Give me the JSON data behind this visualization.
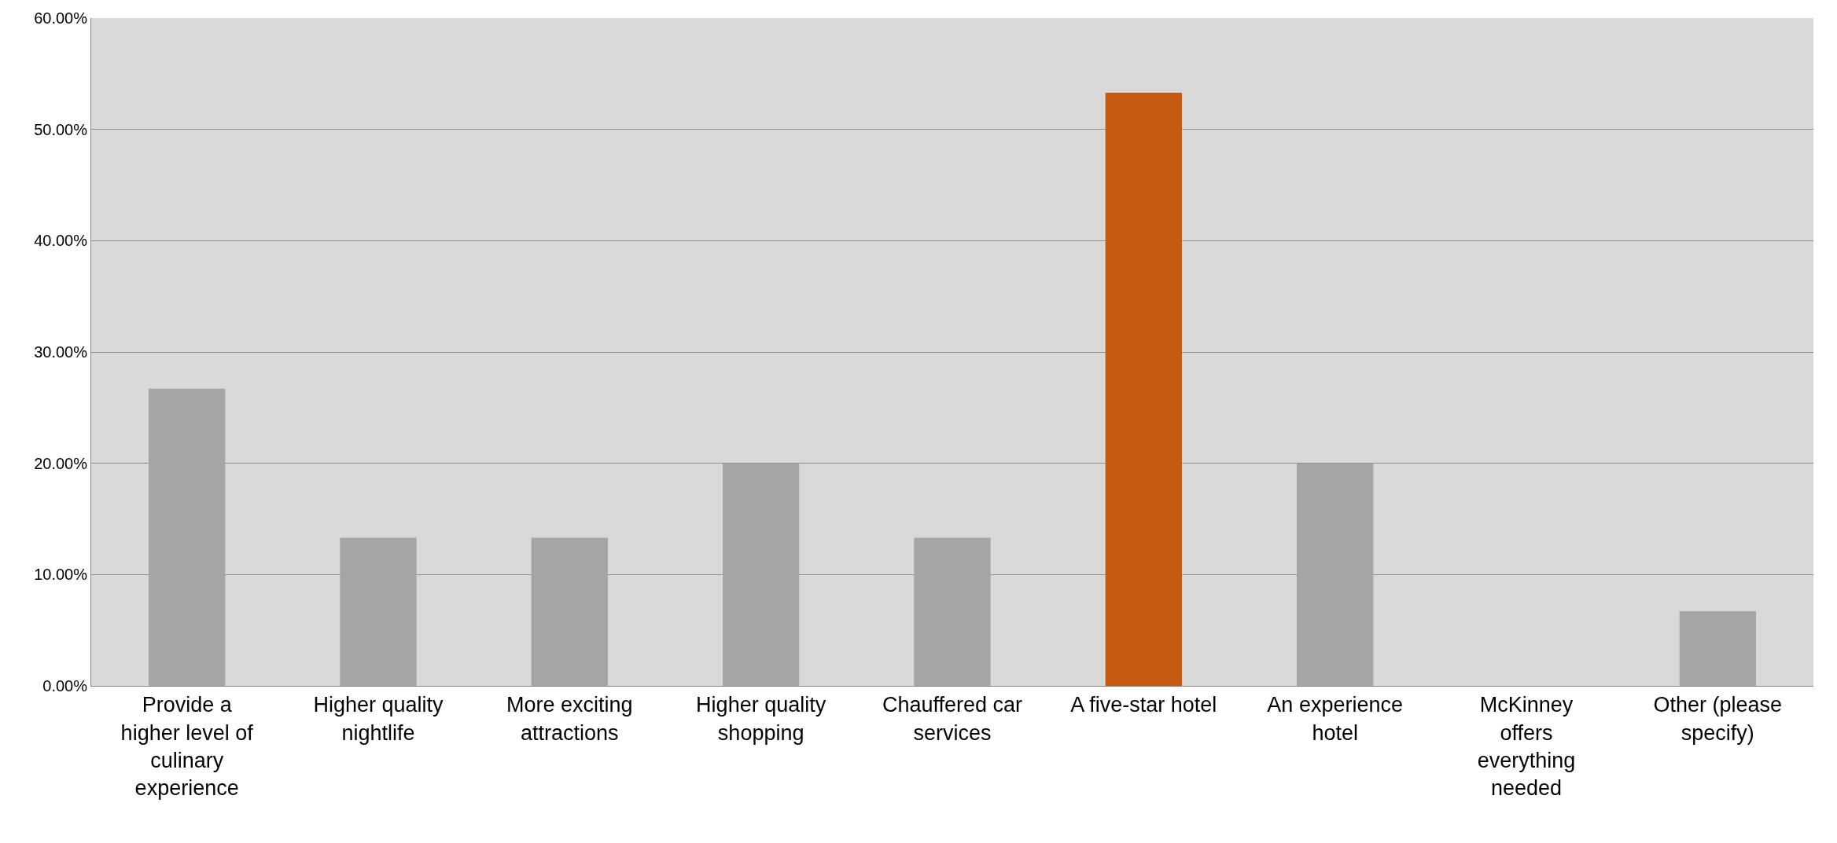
{
  "chart_data": {
    "type": "bar",
    "categories": [
      "Provide a\nhigher level of\nculinary\nexperience",
      "Higher quality\nnightlife",
      "More exciting\nattractions",
      "Higher quality\nshopping",
      "Chauffered car\nservices",
      "A five-star hotel",
      "An experience\nhotel",
      "McKinney\noffers\neverything\nneeded",
      "Other (please\nspecify)"
    ],
    "values": [
      26.7,
      13.3,
      13.3,
      20,
      13.3,
      53.3,
      20,
      0,
      6.7
    ],
    "colors": [
      "#a5a5a5",
      "#a5a5a5",
      "#a5a5a5",
      "#a5a5a5",
      "#a5a5a5",
      "#c55a11",
      "#a5a5a5",
      "#a5a5a5",
      "#a5a5a5"
    ],
    "ylim": [
      0,
      60
    ],
    "yticks": [
      {
        "value": 0,
        "label": "0.00%"
      },
      {
        "value": 10,
        "label": "10.00%"
      },
      {
        "value": 20,
        "label": "20.00%"
      },
      {
        "value": 30,
        "label": "30.00%"
      },
      {
        "value": 40,
        "label": "40.00%"
      },
      {
        "value": 50,
        "label": "50.00%"
      },
      {
        "value": 60,
        "label": "60.00%"
      }
    ],
    "grid": "y"
  }
}
